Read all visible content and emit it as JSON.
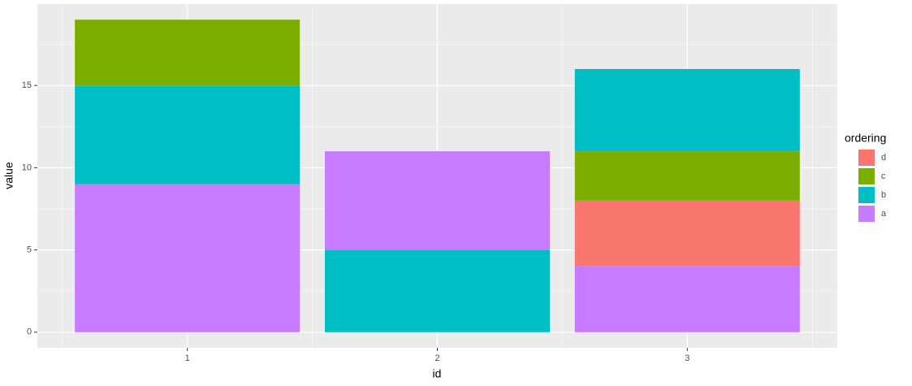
{
  "chart_data": {
    "type": "stacked-bar",
    "x_label": "id",
    "y_label": "value",
    "categories": [
      "1",
      "2",
      "3"
    ],
    "stacks": [
      [
        {
          "series": "a",
          "value": 9
        },
        {
          "series": "b",
          "value": 6
        },
        {
          "series": "c",
          "value": 4
        }
      ],
      [
        {
          "series": "b",
          "value": 5
        },
        {
          "series": "a",
          "value": 6
        }
      ],
      [
        {
          "series": "a",
          "value": 4
        },
        {
          "series": "d",
          "value": 4
        },
        {
          "series": "c",
          "value": 3
        },
        {
          "series": "b",
          "value": 5
        }
      ]
    ],
    "legend_title": "ordering",
    "series": [
      {
        "name": "d",
        "color": "#f8766d"
      },
      {
        "name": "c",
        "color": "#7cae00"
      },
      {
        "name": "b",
        "color": "#00bfc4"
      },
      {
        "name": "a",
        "color": "#c77cff"
      }
    ],
    "ylim": [
      -0.95,
      19.95
    ],
    "yticks": [
      0,
      5,
      10,
      15
    ],
    "grid": true,
    "legend": "right"
  }
}
